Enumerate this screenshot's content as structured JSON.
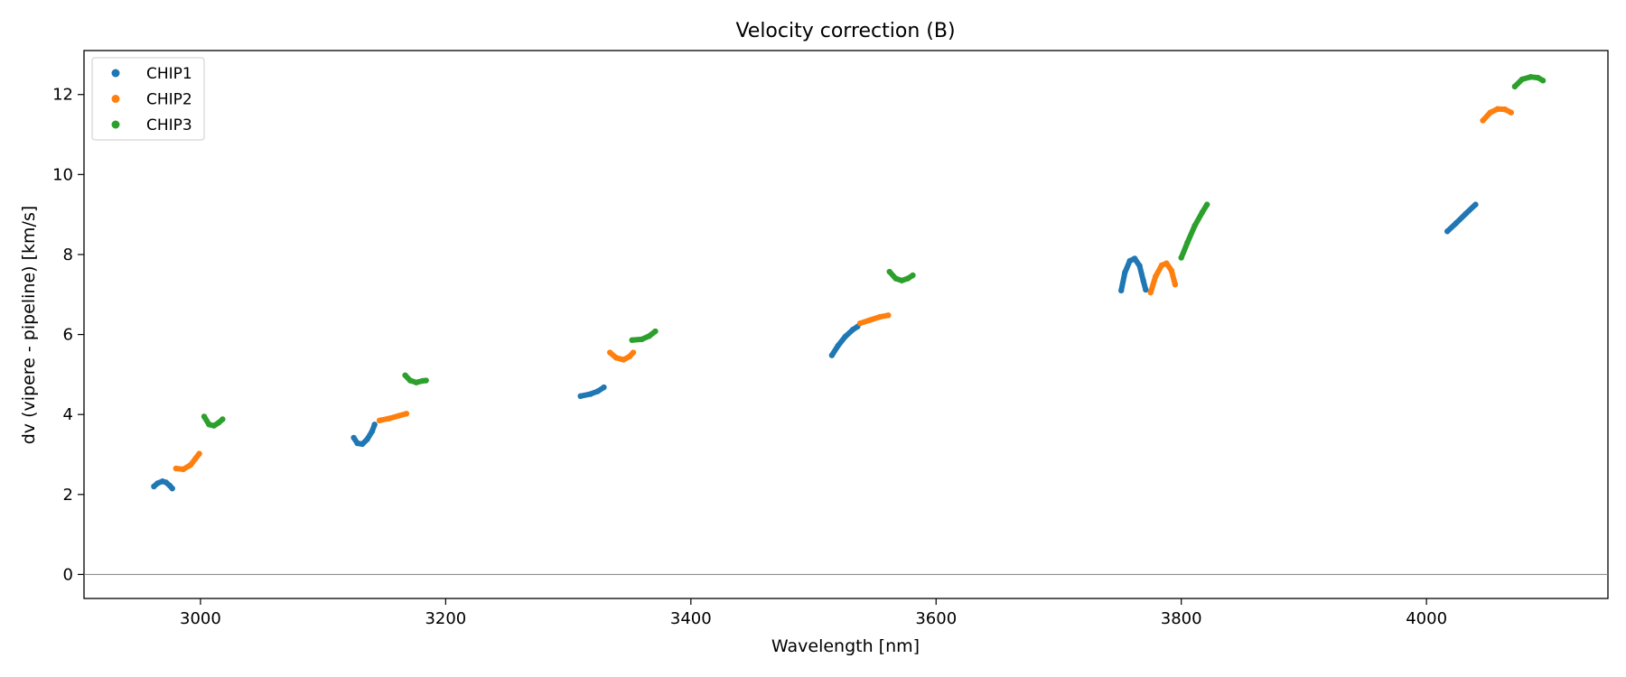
{
  "chart_data": {
    "type": "scatter",
    "title": "Velocity correction (B)",
    "xlabel": "Wavelength [nm]",
    "ylabel": "dv (vipere - pipeline) [km/s]",
    "xlim": [
      2905,
      4148
    ],
    "ylim": [
      -0.6,
      13.1
    ],
    "xticks": [
      3000,
      3200,
      3400,
      3600,
      3800,
      4000
    ],
    "yticks": [
      0,
      2,
      4,
      6,
      8,
      10,
      12
    ],
    "reference_line_y": 0,
    "grid": false,
    "legend_position": "top-left",
    "series": [
      {
        "name": "CHIP1",
        "color": "#1f77b4",
        "segments": [
          [
            [
              2962,
              2.2
            ],
            [
              2965,
              2.28
            ],
            [
              2969,
              2.33
            ],
            [
              2972,
              2.3
            ],
            [
              2975,
              2.22
            ],
            [
              2977,
              2.15
            ]
          ],
          [
            [
              3125,
              3.42
            ],
            [
              3128,
              3.28
            ],
            [
              3132,
              3.26
            ],
            [
              3136,
              3.38
            ],
            [
              3140,
              3.58
            ],
            [
              3142,
              3.75
            ]
          ],
          [
            [
              3310,
              4.46
            ],
            [
              3318,
              4.51
            ],
            [
              3324,
              4.58
            ],
            [
              3329,
              4.68
            ]
          ],
          [
            [
              3515,
              5.48
            ],
            [
              3520,
              5.72
            ],
            [
              3526,
              5.95
            ],
            [
              3532,
              6.12
            ],
            [
              3536,
              6.2
            ]
          ],
          [
            [
              3751,
              7.1
            ],
            [
              3754,
              7.55
            ],
            [
              3758,
              7.84
            ],
            [
              3762,
              7.9
            ],
            [
              3766,
              7.72
            ],
            [
              3769,
              7.35
            ],
            [
              3771,
              7.12
            ]
          ],
          [
            [
              4017,
              8.58
            ],
            [
              4024,
              8.78
            ],
            [
              4032,
              9.02
            ],
            [
              4040,
              9.25
            ]
          ]
        ]
      },
      {
        "name": "CHIP2",
        "color": "#ff7f0e",
        "segments": [
          [
            [
              2980,
              2.65
            ],
            [
              2986,
              2.63
            ],
            [
              2992,
              2.74
            ],
            [
              2996,
              2.9
            ],
            [
              2999,
              3.02
            ]
          ],
          [
            [
              3146,
              3.85
            ],
            [
              3154,
              3.9
            ],
            [
              3162,
              3.97
            ],
            [
              3168,
              4.02
            ]
          ],
          [
            [
              3334,
              5.55
            ],
            [
              3339,
              5.42
            ],
            [
              3345,
              5.37
            ],
            [
              3350,
              5.45
            ],
            [
              3353,
              5.55
            ]
          ],
          [
            [
              3538,
              6.28
            ],
            [
              3546,
              6.36
            ],
            [
              3554,
              6.44
            ],
            [
              3561,
              6.48
            ]
          ],
          [
            [
              3775,
              7.05
            ],
            [
              3779,
              7.45
            ],
            [
              3784,
              7.73
            ],
            [
              3788,
              7.78
            ],
            [
              3792,
              7.6
            ],
            [
              3795,
              7.25
            ]
          ],
          [
            [
              4046,
              11.35
            ],
            [
              4052,
              11.55
            ],
            [
              4058,
              11.64
            ],
            [
              4064,
              11.63
            ],
            [
              4069,
              11.55
            ]
          ]
        ]
      },
      {
        "name": "CHIP3",
        "color": "#2ca02c",
        "segments": [
          [
            [
              3003,
              3.95
            ],
            [
              3007,
              3.75
            ],
            [
              3011,
              3.72
            ],
            [
              3015,
              3.8
            ],
            [
              3018,
              3.88
            ]
          ],
          [
            [
              3167,
              4.98
            ],
            [
              3171,
              4.85
            ],
            [
              3176,
              4.8
            ],
            [
              3181,
              4.84
            ],
            [
              3184,
              4.85
            ]
          ],
          [
            [
              3352,
              5.86
            ],
            [
              3360,
              5.88
            ],
            [
              3366,
              5.96
            ],
            [
              3371,
              6.08
            ]
          ],
          [
            [
              3562,
              7.57
            ],
            [
              3567,
              7.4
            ],
            [
              3572,
              7.35
            ],
            [
              3577,
              7.4
            ],
            [
              3581,
              7.48
            ]
          ],
          [
            [
              3800,
              7.92
            ],
            [
              3805,
              8.3
            ],
            [
              3811,
              8.72
            ],
            [
              3817,
              9.05
            ],
            [
              3821,
              9.25
            ]
          ],
          [
            [
              4072,
              12.2
            ],
            [
              4078,
              12.38
            ],
            [
              4085,
              12.44
            ],
            [
              4091,
              12.42
            ],
            [
              4095,
              12.35
            ]
          ]
        ]
      }
    ]
  }
}
